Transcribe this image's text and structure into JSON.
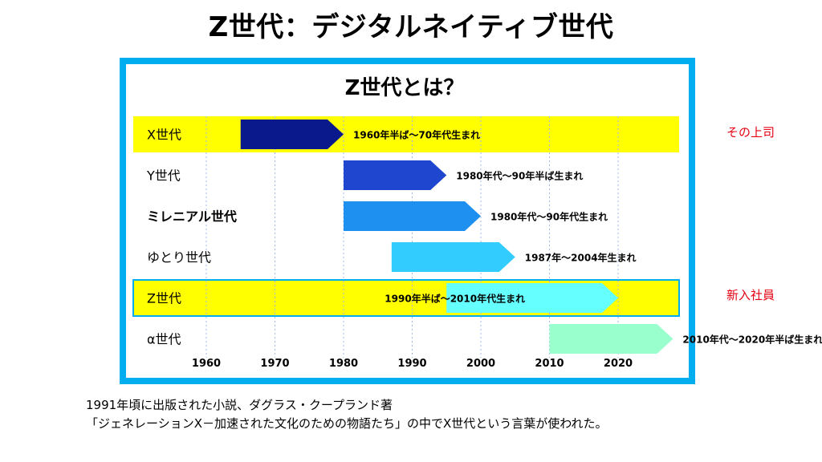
{
  "slide_title": "Z世代：デジタルネイティブ世代",
  "chart_title": "Z世代とは？",
  "notes": {
    "x_gen": "その上司",
    "z_gen": "新入社員"
  },
  "footer": {
    "line1": "1991年頃に出版された小説、ダグラス・クープランド著",
    "line2": "「ジェネレーションX－加速された文化のための物語たち」の中でX世代という言葉が使われた。"
  },
  "colors": {
    "frame": "#00aeef",
    "highlight": "#ffff00",
    "note": "#e60012",
    "grid": "#9fb8e8"
  },
  "chart_data": {
    "type": "timeline",
    "x_ticks": [
      1960,
      1970,
      1980,
      1990,
      2000,
      2010,
      2020
    ],
    "xlim": [
      1955,
      2030
    ],
    "grid": true,
    "rows": [
      {
        "name": "X世代",
        "start": 1965,
        "end": 1980,
        "label": "1960年半ば～70年代生まれ",
        "color": "#0a1a8c",
        "highlight": true,
        "highlight_border": false
      },
      {
        "name": "Y世代",
        "start": 1980,
        "end": 1995,
        "label": "1980年代～90年半ば生まれ",
        "color": "#1f46cf",
        "highlight": false
      },
      {
        "name": "ミレニアル世代",
        "start": 1980,
        "end": 2000,
        "label": "1980年代～90年代生まれ",
        "color": "#1e90f0",
        "highlight": false
      },
      {
        "name": "ゆとり世代",
        "start": 1987,
        "end": 2005,
        "label": "1987年～2004年生まれ",
        "color": "#33ccff",
        "highlight": false
      },
      {
        "name": "Z世代",
        "start": 1995,
        "end": 2020,
        "label": "1990年半ば～2010年代生まれ",
        "color": "#66ffff",
        "highlight": true,
        "highlight_border": true
      },
      {
        "name": "α世代",
        "start": 2010,
        "end": 2028,
        "label": "2010年代～2020年半ば生まれ",
        "color": "#99ffcc",
        "highlight": false
      }
    ]
  }
}
